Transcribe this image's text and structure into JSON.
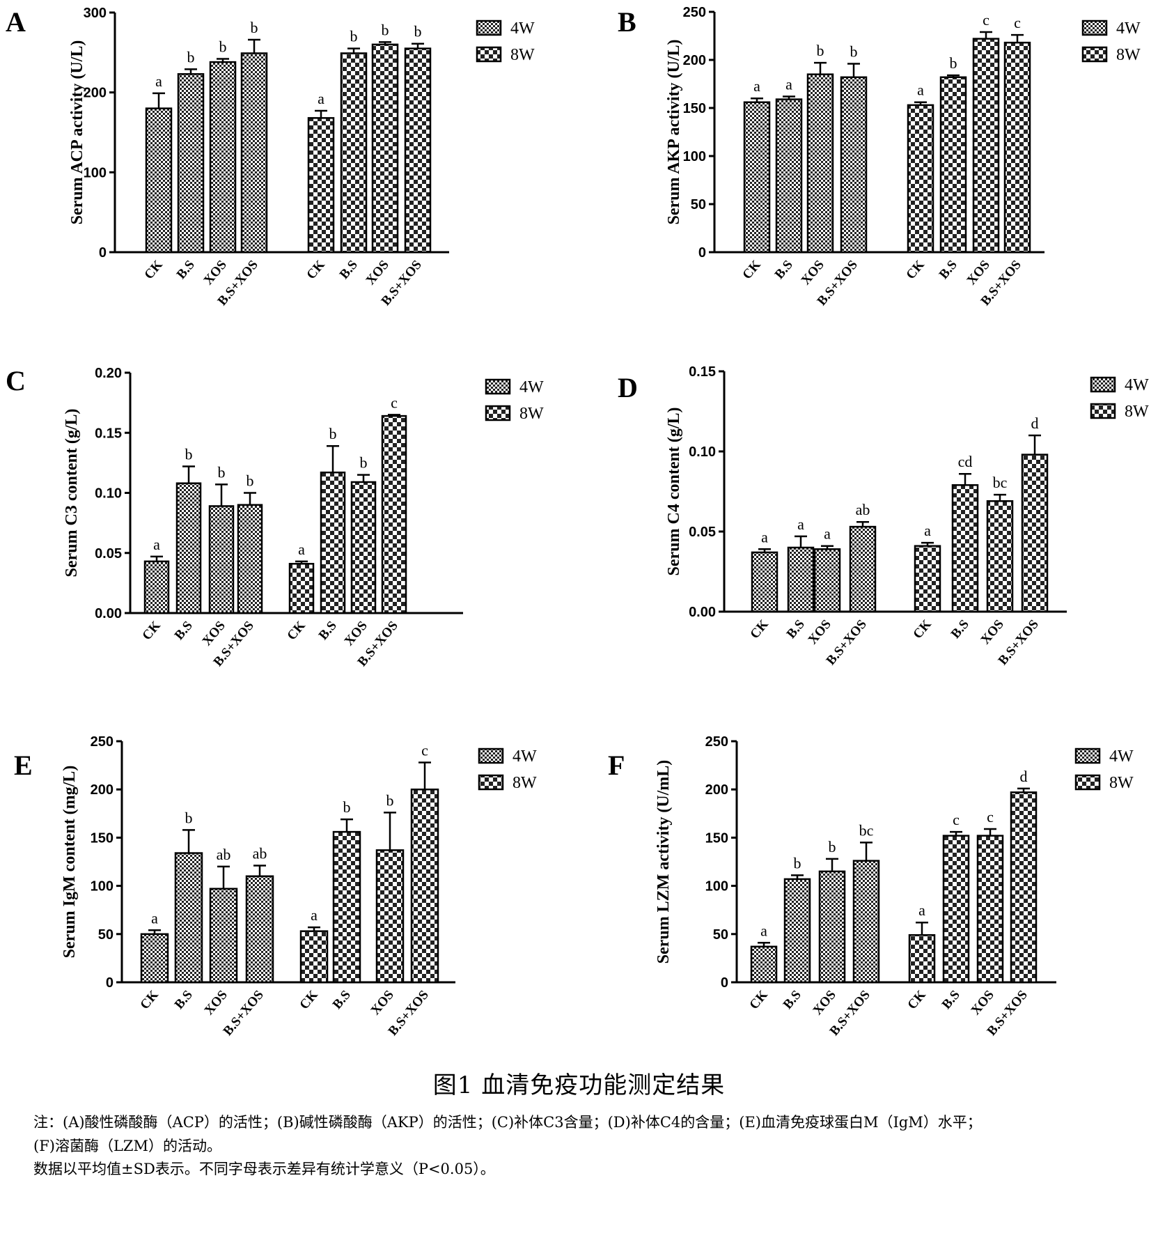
{
  "legend_labels": [
    "4W",
    "8W"
  ],
  "colors": {
    "bar_fill": "#ffffff",
    "pattern": "#222222",
    "axis": "#000000"
  },
  "caption": {
    "title": "图1 血清免疫功能测定结果",
    "note_line1": "注：(A)酸性磷酸酶（ACP）的活性；(B)碱性磷酸酶（AKP）的活性；(C)补体C3含量；(D)补体C4的含量；(E)血清免疫球蛋白M（IgM）水平；",
    "note_line2": "(F)溶菌酶（LZM）的活动。",
    "note_line3": "数据以平均值±SD表示。不同字母表示差异有统计学意义（P<0.05）。"
  },
  "chart_data": [
    {
      "panel": "A",
      "type": "bar",
      "ylabel": "Serum ACP activity (U/L)",
      "ylim": [
        0,
        300
      ],
      "yticks": [
        0,
        100,
        200,
        300
      ],
      "ytick_labels": [
        "0",
        "100",
        "200",
        "300"
      ],
      "categories": [
        "CK",
        "B.S",
        "XOS",
        "B.S+XOS"
      ],
      "legend": "top-right",
      "series": [
        {
          "name": "4W",
          "values": [
            180,
            223,
            238,
            249
          ],
          "errors": [
            19,
            6,
            4,
            17
          ],
          "letters": [
            "a",
            "b",
            "b",
            "b"
          ]
        },
        {
          "name": "8W",
          "values": [
            168,
            249,
            260,
            255
          ],
          "errors": [
            9,
            6,
            3,
            6
          ],
          "letters": [
            "a",
            "b",
            "b",
            "b"
          ]
        }
      ]
    },
    {
      "panel": "B",
      "type": "bar",
      "ylabel": "Serum AKP activity (U/L)",
      "ylim": [
        0,
        250
      ],
      "yticks": [
        0,
        50,
        100,
        150,
        200,
        250
      ],
      "ytick_labels": [
        "0",
        "50",
        "100",
        "150",
        "200",
        "250"
      ],
      "categories": [
        "CK",
        "B.S",
        "XOS",
        "B.S+XOS"
      ],
      "legend": "top-right",
      "series": [
        {
          "name": "4W",
          "values": [
            156,
            159,
            185,
            182
          ],
          "errors": [
            4,
            3,
            12,
            14
          ],
          "letters": [
            "a",
            "a",
            "b",
            "b"
          ]
        },
        {
          "name": "8W",
          "values": [
            153,
            182,
            222,
            218
          ],
          "errors": [
            3,
            2,
            7,
            8
          ],
          "letters": [
            "a",
            "b",
            "c",
            "c"
          ]
        }
      ]
    },
    {
      "panel": "C",
      "type": "bar",
      "ylabel": "Serum C3 content (g/L)",
      "ylim": [
        0,
        0.2
      ],
      "yticks": [
        0,
        0.05,
        0.1,
        0.15,
        0.2
      ],
      "ytick_labels": [
        "0.00",
        "0.05",
        "0.10",
        "0.15",
        "0.20"
      ],
      "categories": [
        "CK",
        "B.S",
        "XOS",
        "B.S+XOS"
      ],
      "legend": "top-right",
      "series": [
        {
          "name": "4W",
          "values": [
            0.043,
            0.108,
            0.089,
            0.09
          ],
          "errors": [
            0.004,
            0.014,
            0.018,
            0.01
          ],
          "letters": [
            "a",
            "b",
            "b",
            "b"
          ]
        },
        {
          "name": "8W",
          "values": [
            0.041,
            0.117,
            0.109,
            0.164
          ],
          "errors": [
            0.002,
            0.022,
            0.006,
            0.001
          ],
          "letters": [
            "a",
            "b",
            "b",
            "c"
          ]
        }
      ]
    },
    {
      "panel": "D",
      "type": "bar",
      "ylabel": "Serum C4 content (g/L)",
      "ylim": [
        0,
        0.15
      ],
      "yticks": [
        0,
        0.05,
        0.1,
        0.15
      ],
      "ytick_labels": [
        "0.00",
        "0.05",
        "0.10",
        "0.15"
      ],
      "categories": [
        "CK",
        "B.S",
        "XOS",
        "B.S+XOS"
      ],
      "legend": "top-right",
      "series": [
        {
          "name": "4W",
          "values": [
            0.037,
            0.04,
            0.039,
            0.053
          ],
          "errors": [
            0.002,
            0.007,
            0.002,
            0.003
          ],
          "letters": [
            "a",
            "a",
            "a",
            "ab"
          ]
        },
        {
          "name": "8W",
          "values": [
            0.041,
            0.079,
            0.069,
            0.098
          ],
          "errors": [
            0.002,
            0.007,
            0.004,
            0.012
          ],
          "letters": [
            "a",
            "cd",
            "bc",
            "d"
          ]
        }
      ]
    },
    {
      "panel": "E",
      "type": "bar",
      "ylabel": "Serum IgM content (mg/L)",
      "ylim": [
        0,
        250
      ],
      "yticks": [
        0,
        50,
        100,
        150,
        200,
        250
      ],
      "ytick_labels": [
        "0",
        "50",
        "100",
        "150",
        "200",
        "250"
      ],
      "categories": [
        "CK",
        "B.S",
        "XOS",
        "B.S+XOS"
      ],
      "legend": "top-right",
      "series": [
        {
          "name": "4W",
          "values": [
            50,
            134,
            97,
            110
          ],
          "errors": [
            4,
            24,
            23,
            11
          ],
          "letters": [
            "a",
            "b",
            "ab",
            "ab"
          ]
        },
        {
          "name": "8W",
          "values": [
            53,
            156,
            137,
            200
          ],
          "errors": [
            4,
            13,
            39,
            28
          ],
          "letters": [
            "a",
            "b",
            "b",
            "c"
          ]
        }
      ]
    },
    {
      "panel": "F",
      "type": "bar",
      "ylabel": "Serum LZM activity (U/mL)",
      "ylim": [
        0,
        250
      ],
      "yticks": [
        0,
        50,
        100,
        150,
        200,
        250
      ],
      "ytick_labels": [
        "0",
        "50",
        "100",
        "150",
        "200",
        "250"
      ],
      "categories": [
        "CK",
        "B.S",
        "XOS",
        "B.S+XOS"
      ],
      "legend": "top-right",
      "series": [
        {
          "name": "4W",
          "values": [
            37,
            107,
            115,
            126
          ],
          "errors": [
            4,
            4,
            13,
            19
          ],
          "letters": [
            "a",
            "b",
            "b",
            "bc"
          ]
        },
        {
          "name": "8W",
          "values": [
            49,
            152,
            152,
            197
          ],
          "errors": [
            13,
            4,
            7,
            4
          ],
          "letters": [
            "a",
            "c",
            "c",
            "d"
          ]
        }
      ]
    }
  ]
}
